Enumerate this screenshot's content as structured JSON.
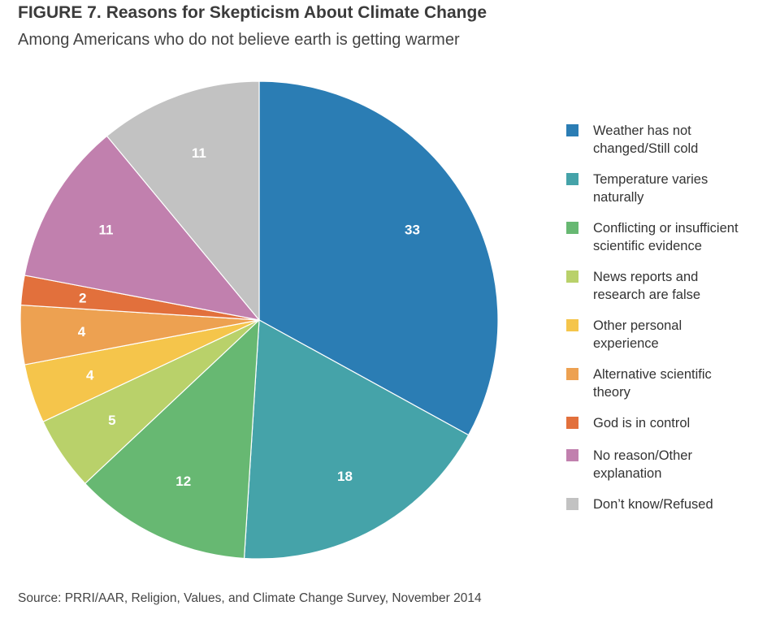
{
  "figure_label": "FIGURE 7.",
  "title": "Reasons for Skepticism About Climate Change",
  "subtitle": "Among Americans who do not believe earth is getting warmer",
  "source": "Source: PRRI/AAR, Religion, Values, and Climate Change Survey, November 2014",
  "chart_data": {
    "type": "pie",
    "title": "Reasons for Skepticism About Climate Change",
    "subtitle": "Among Americans who do not believe earth is getting warmer",
    "direction": "clockwise from top",
    "legend_position": "right",
    "categories": [
      "Weather has not changed/Still cold",
      "Temperature varies naturally",
      "Conflicting or insufficient scientific evidence",
      "News reports and research are false",
      "Other personal experience",
      "Alternative scientific theory",
      "God is in control",
      "No reason/Other explanation",
      "Don’t know/Refused"
    ],
    "legend_lines": [
      [
        "Weather has not",
        "changed/Still cold"
      ],
      [
        "Temperature varies",
        "naturally"
      ],
      [
        "Conflicting or insufficient",
        "scientific evidence"
      ],
      [
        "News reports and",
        "research are false"
      ],
      [
        "Other personal",
        "experience"
      ],
      [
        "Alternative scientific",
        "theory"
      ],
      [
        "God is in control"
      ],
      [
        "No reason/Other",
        "explanation"
      ],
      [
        "Don’t know/Refused"
      ]
    ],
    "values": [
      33,
      18,
      12,
      5,
      4,
      4,
      2,
      11,
      11
    ],
    "data_labels": [
      "33",
      "18",
      "12",
      "5",
      "4",
      "4",
      "2",
      "11",
      "11"
    ],
    "colors": [
      "#2b7db4",
      "#45a3a9",
      "#67b872",
      "#b9d16a",
      "#f5c54b",
      "#eda151",
      "#e2703c",
      "#c180ae",
      "#c2c2c2"
    ]
  }
}
